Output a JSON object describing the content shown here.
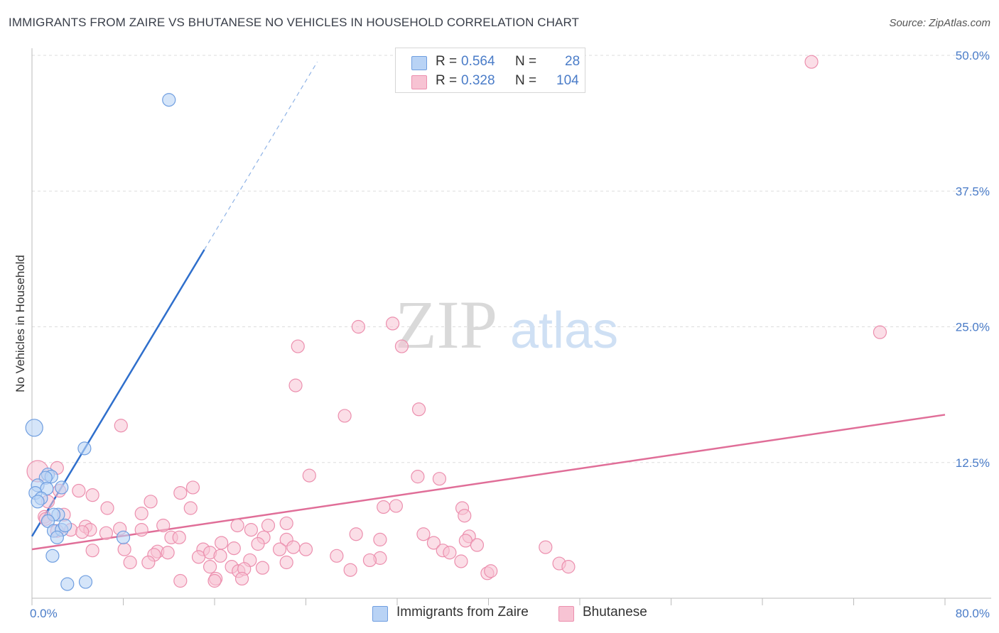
{
  "title": "IMMIGRANTS FROM ZAIRE VS BHUTANESE NO VEHICLES IN HOUSEHOLD CORRELATION CHART",
  "source": "Source: ZipAtlas.com",
  "watermark": {
    "zip": "ZIP",
    "atlas": "atlas"
  },
  "colors": {
    "blue_fill": "#b9d3f5",
    "blue_stroke": "#6f9ee0",
    "blue_line": "#2f6fcc",
    "pink_fill": "#f7c3d3",
    "pink_stroke": "#ec8fae",
    "pink_line": "#e06e98",
    "tick_text": "#4a7cc8",
    "grid": "#dddddd"
  },
  "legend": {
    "rows": [
      {
        "r_label": "R =",
        "r_value": "0.564",
        "n_label": "N =",
        "n_value": "28"
      },
      {
        "r_label": "R =",
        "r_value": "0.328",
        "n_label": "N =",
        "n_value": "104"
      }
    ]
  },
  "bottom_legend": {
    "series1": "Immigrants from Zaire",
    "series2": "Bhutanese"
  },
  "chart_data": {
    "type": "scatter",
    "xlabel": "",
    "ylabel": "No Vehicles in Household",
    "xlim": [
      0,
      80
    ],
    "ylim": [
      0,
      50
    ],
    "x_tick_labels": [
      "0.0%",
      "80.0%"
    ],
    "y_ticks": [
      12.5,
      25.0,
      37.5,
      50.0
    ],
    "y_tick_labels": [
      "12.5%",
      "25.0%",
      "37.5%",
      "50.0%"
    ],
    "grid": true,
    "series": [
      {
        "name": "Immigrants from Zaire",
        "color": "blue",
        "trendline": {
          "x_start": 0,
          "y_start": 5.7,
          "x_end": 15.1,
          "y_end": 32.1,
          "x_dash_end": 25,
          "y_dash_end": 49.4
        },
        "points": [
          [
            12,
            45.9,
            9
          ],
          [
            0.2,
            15.7,
            12
          ],
          [
            4.6,
            13.8,
            9
          ],
          [
            1.4,
            11.4,
            9
          ],
          [
            1.7,
            11.2,
            9
          ],
          [
            1.2,
            11.1,
            9
          ],
          [
            0.5,
            10.4,
            9
          ],
          [
            1.3,
            10.1,
            9
          ],
          [
            2.6,
            10.2,
            9
          ],
          [
            0.3,
            9.7,
            9
          ],
          [
            0.8,
            9.2,
            9
          ],
          [
            0.5,
            8.9,
            9
          ],
          [
            2.3,
            7.7,
            9
          ],
          [
            1.9,
            7.7,
            9
          ],
          [
            1.4,
            7.1,
            9
          ],
          [
            1.9,
            6.2,
            9
          ],
          [
            2.6,
            6.3,
            9
          ],
          [
            2.9,
            6.7,
            9
          ],
          [
            8.0,
            5.6,
            9
          ],
          [
            2.2,
            5.6,
            9
          ],
          [
            1.8,
            3.9,
            9
          ],
          [
            3.1,
            1.3,
            9
          ],
          [
            4.7,
            1.5,
            9
          ]
        ]
      },
      {
        "name": "Bhutanese",
        "color": "pink",
        "trendline": {
          "x_start": 0,
          "y_start": 4.5,
          "x_end": 80,
          "y_end": 16.9
        },
        "points": [
          [
            68.3,
            49.4,
            9
          ],
          [
            74.3,
            24.5,
            9
          ],
          [
            28.6,
            25.0,
            9
          ],
          [
            31.6,
            25.3,
            9
          ],
          [
            32.4,
            23.2,
            9
          ],
          [
            23.3,
            23.2,
            9
          ],
          [
            23.1,
            19.6,
            9
          ],
          [
            27.4,
            16.8,
            9
          ],
          [
            33.9,
            17.4,
            9
          ],
          [
            7.8,
            15.9,
            9
          ],
          [
            0.5,
            11.7,
            15
          ],
          [
            2.2,
            12.0,
            9
          ],
          [
            24.3,
            11.3,
            9
          ],
          [
            33.8,
            11.2,
            9
          ],
          [
            35.7,
            11.0,
            9
          ],
          [
            14.1,
            10.2,
            9
          ],
          [
            13.0,
            9.7,
            9
          ],
          [
            2.4,
            9.9,
            9
          ],
          [
            4.1,
            9.9,
            9
          ],
          [
            5.3,
            9.5,
            9
          ],
          [
            10.4,
            8.9,
            9
          ],
          [
            1.4,
            8.9,
            9
          ],
          [
            31.9,
            8.5,
            9
          ],
          [
            30.8,
            8.4,
            9
          ],
          [
            6.6,
            8.3,
            9
          ],
          [
            13.9,
            8.3,
            9
          ],
          [
            37.7,
            8.3,
            9
          ],
          [
            37.9,
            7.6,
            9
          ],
          [
            9.6,
            7.8,
            9
          ],
          [
            2.8,
            7.7,
            9
          ],
          [
            1.1,
            7.5,
            9
          ],
          [
            1.2,
            7.3,
            9
          ],
          [
            11.5,
            6.7,
            9
          ],
          [
            18.0,
            6.7,
            9
          ],
          [
            20.7,
            6.7,
            9
          ],
          [
            22.3,
            6.9,
            9
          ],
          [
            4.7,
            6.6,
            9
          ],
          [
            3.4,
            6.3,
            9
          ],
          [
            5.1,
            6.3,
            9
          ],
          [
            7.7,
            6.4,
            9
          ],
          [
            9.6,
            6.3,
            9
          ],
          [
            2.2,
            6.2,
            9
          ],
          [
            4.4,
            6.1,
            9
          ],
          [
            6.5,
            6.0,
            9
          ],
          [
            19.2,
            6.3,
            9
          ],
          [
            34.3,
            5.9,
            9
          ],
          [
            38.3,
            5.7,
            9
          ],
          [
            12.2,
            5.6,
            9
          ],
          [
            12.9,
            5.6,
            9
          ],
          [
            20.3,
            5.6,
            9
          ],
          [
            22.3,
            5.4,
            9
          ],
          [
            28.4,
            5.9,
            9
          ],
          [
            30.5,
            5.4,
            9
          ],
          [
            35.2,
            5.1,
            9
          ],
          [
            38.0,
            5.3,
            9
          ],
          [
            39.0,
            4.9,
            9
          ],
          [
            45.0,
            4.7,
            9
          ],
          [
            16.6,
            5.1,
            9
          ],
          [
            19.8,
            5.0,
            9
          ],
          [
            22.9,
            4.7,
            9
          ],
          [
            8.1,
            4.5,
            9
          ],
          [
            11.0,
            4.3,
            9
          ],
          [
            11.9,
            4.2,
            9
          ],
          [
            10.7,
            4.0,
            9
          ],
          [
            15.0,
            4.5,
            9
          ],
          [
            17.7,
            4.6,
            9
          ],
          [
            21.7,
            4.5,
            9
          ],
          [
            24.0,
            4.5,
            9
          ],
          [
            36.0,
            4.4,
            9
          ],
          [
            36.6,
            4.2,
            9
          ],
          [
            14.6,
            3.8,
            9
          ],
          [
            15.6,
            4.2,
            9
          ],
          [
            16.5,
            3.9,
            9
          ],
          [
            26.7,
            3.9,
            9
          ],
          [
            30.5,
            3.7,
            9
          ],
          [
            8.6,
            3.3,
            9
          ],
          [
            10.2,
            3.3,
            9
          ],
          [
            19.1,
            3.5,
            9
          ],
          [
            22.3,
            3.3,
            9
          ],
          [
            29.6,
            3.5,
            9
          ],
          [
            37.6,
            3.4,
            9
          ],
          [
            46.2,
            3.2,
            9
          ],
          [
            15.6,
            2.9,
            9
          ],
          [
            17.5,
            2.9,
            9
          ],
          [
            18.1,
            2.5,
            9
          ],
          [
            18.6,
            2.7,
            9
          ],
          [
            20.2,
            2.8,
            9
          ],
          [
            27.9,
            2.6,
            9
          ],
          [
            39.9,
            2.3,
            9
          ],
          [
            40.2,
            2.5,
            9
          ],
          [
            47.0,
            2.9,
            9
          ],
          [
            5.3,
            4.4,
            9
          ],
          [
            16.1,
            1.8,
            9
          ],
          [
            18.4,
            1.8,
            9
          ],
          [
            13.0,
            1.6,
            9
          ],
          [
            16.0,
            1.6,
            9
          ]
        ]
      }
    ]
  }
}
